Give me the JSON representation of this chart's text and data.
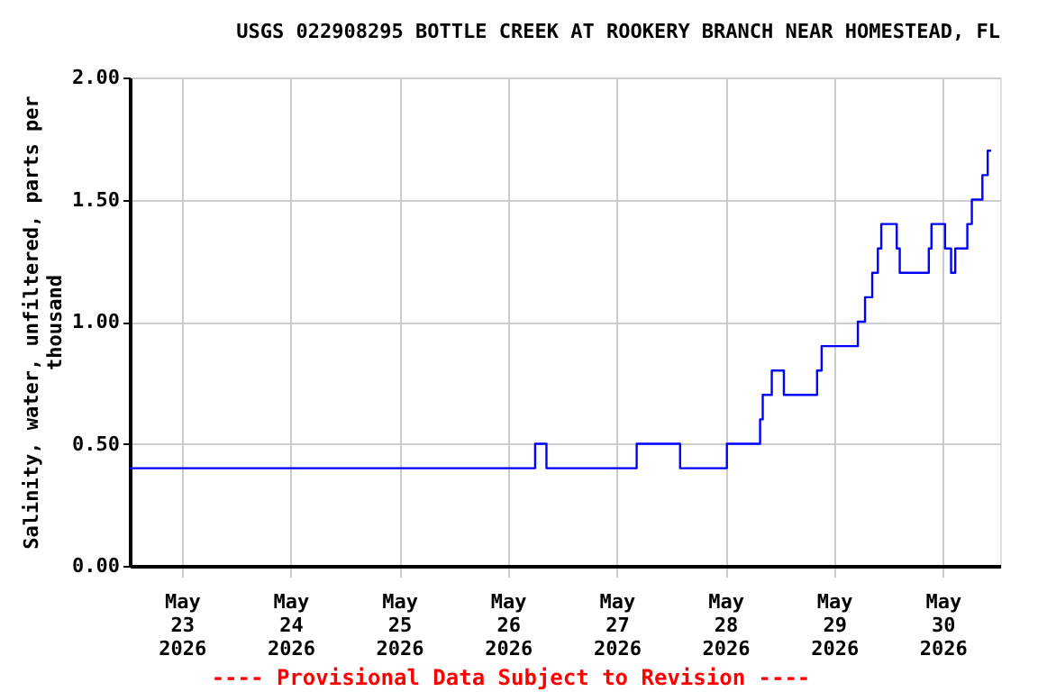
{
  "chart_data": {
    "type": "step",
    "title": "USGS 022908295 BOTTLE CREEK AT ROOKERY BRANCH NEAR HOMESTEAD, FL",
    "ylabel": "Salinity, water, unfiltered, parts per thousand",
    "annotations": [
      "---- Provisional Data Subject to Revision ----"
    ],
    "x": [
      "2026-05-22T12:30",
      "2026-05-26T06:00",
      "2026-05-26T08:30",
      "2026-05-27T04:25",
      "2026-05-27T14:00",
      "2026-05-28T00:20",
      "2026-05-28T07:40",
      "2026-05-28T08:15",
      "2026-05-28T10:15",
      "2026-05-28T12:55",
      "2026-05-28T20:15",
      "2026-05-28T21:15",
      "2026-05-29T05:15",
      "2026-05-29T06:50",
      "2026-05-29T08:25",
      "2026-05-29T09:40",
      "2026-05-29T10:25",
      "2026-05-29T13:50",
      "2026-05-29T14:30",
      "2026-05-29T20:55",
      "2026-05-29T21:30",
      "2026-05-30T00:30",
      "2026-05-30T01:50",
      "2026-05-30T02:45",
      "2026-05-30T05:25",
      "2026-05-30T06:25",
      "2026-05-30T08:45",
      "2026-05-30T09:55",
      "2026-05-30T10:40"
    ],
    "series": [
      {
        "color": "#0000ff",
        "values": [
          0.4,
          0.5,
          0.4,
          0.5,
          0.4,
          0.5,
          0.6,
          0.7,
          0.8,
          0.7,
          0.8,
          0.9,
          1.0,
          1.1,
          1.2,
          1.3,
          1.4,
          1.3,
          1.2,
          1.3,
          1.4,
          1.3,
          1.2,
          1.3,
          1.4,
          1.5,
          1.6,
          1.7,
          1.7
        ]
      }
    ],
    "xlim": [
      "2026-05-22T12:30",
      "2026-05-30T12:40"
    ],
    "xticks": [
      {
        "value": "2026-05-23T00:00",
        "label": "May 23 2026"
      },
      {
        "value": "2026-05-24T00:00",
        "label": "May 24 2026"
      },
      {
        "value": "2026-05-25T00:00",
        "label": "May 25 2026"
      },
      {
        "value": "2026-05-26T00:00",
        "label": "May 26 2026"
      },
      {
        "value": "2026-05-27T00:00",
        "label": "May 27 2026"
      },
      {
        "value": "2026-05-28T00:00",
        "label": "May 28 2026"
      },
      {
        "value": "2026-05-29T00:00",
        "label": "May 29 2026"
      },
      {
        "value": "2026-05-30T00:00",
        "label": "May 30 2026"
      }
    ],
    "ylim": [
      0,
      2.0
    ],
    "yticks": [
      {
        "value": 0,
        "label": "0.00"
      },
      {
        "value": 0.5,
        "label": "0.50"
      },
      {
        "value": 1.0,
        "label": "1.00"
      },
      {
        "value": 1.5,
        "label": "1.50"
      },
      {
        "value": 2.0,
        "label": "2.00"
      }
    ],
    "grid": true
  }
}
